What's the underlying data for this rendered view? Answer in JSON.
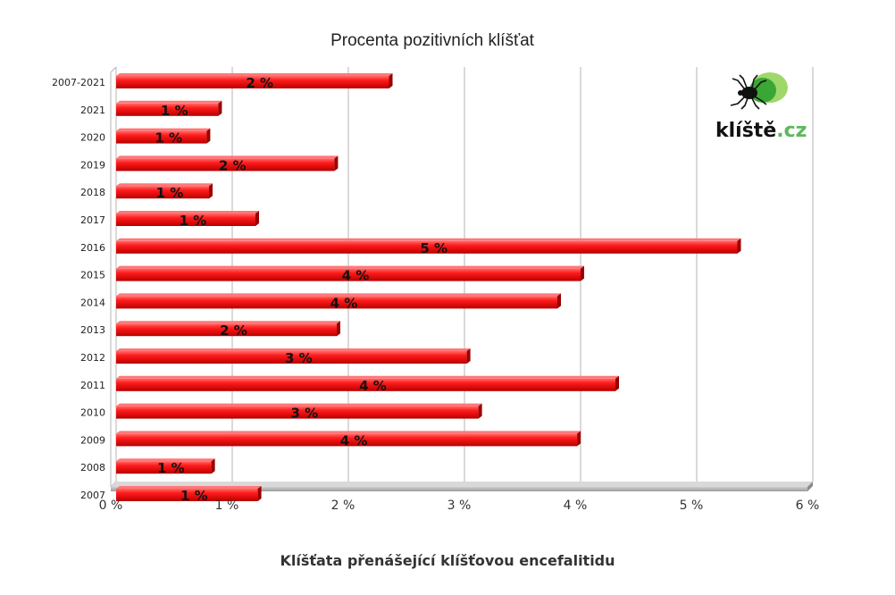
{
  "chart_data": {
    "type": "bar",
    "orientation": "horizontal",
    "title": "Procenta pozitivních klíšťat",
    "categories": [
      "2007-2021",
      "2021",
      "2020",
      "2019",
      "2018",
      "2017",
      "2016",
      "2015",
      "2014",
      "2013",
      "2012",
      "2011",
      "2010",
      "2009",
      "2008",
      "2007"
    ],
    "values": [
      2.35,
      0.88,
      0.78,
      1.88,
      0.8,
      1.2,
      5.35,
      4.0,
      3.8,
      1.9,
      3.02,
      4.3,
      3.12,
      3.97,
      0.82,
      1.22
    ],
    "data_labels": [
      "2 %",
      "1 %",
      "1 %",
      "2 %",
      "1 %",
      "1 %",
      "5 %",
      "4 %",
      "4 %",
      "2 %",
      "3 %",
      "4 %",
      "3 %",
      "4 %",
      "1 %",
      "1 %"
    ],
    "xlim": [
      0,
      6
    ],
    "x_ticks": [
      "0 %",
      "1 %",
      "2 %",
      "3 %",
      "4 %",
      "5 %",
      "6 %"
    ],
    "grid": "vertical",
    "bar_color": "#ee1111",
    "xlabel": "",
    "ylabel": ""
  },
  "logo": {
    "text_main": "klíště",
    "text_suffix": ".cz",
    "icon": "tick-icon",
    "colors": {
      "green_dark": "#3aa635",
      "green_light": "#9fd86a",
      "tick": "#111111"
    }
  },
  "caption": "Klíšťata přenášející klíšťovou encefalitidu"
}
